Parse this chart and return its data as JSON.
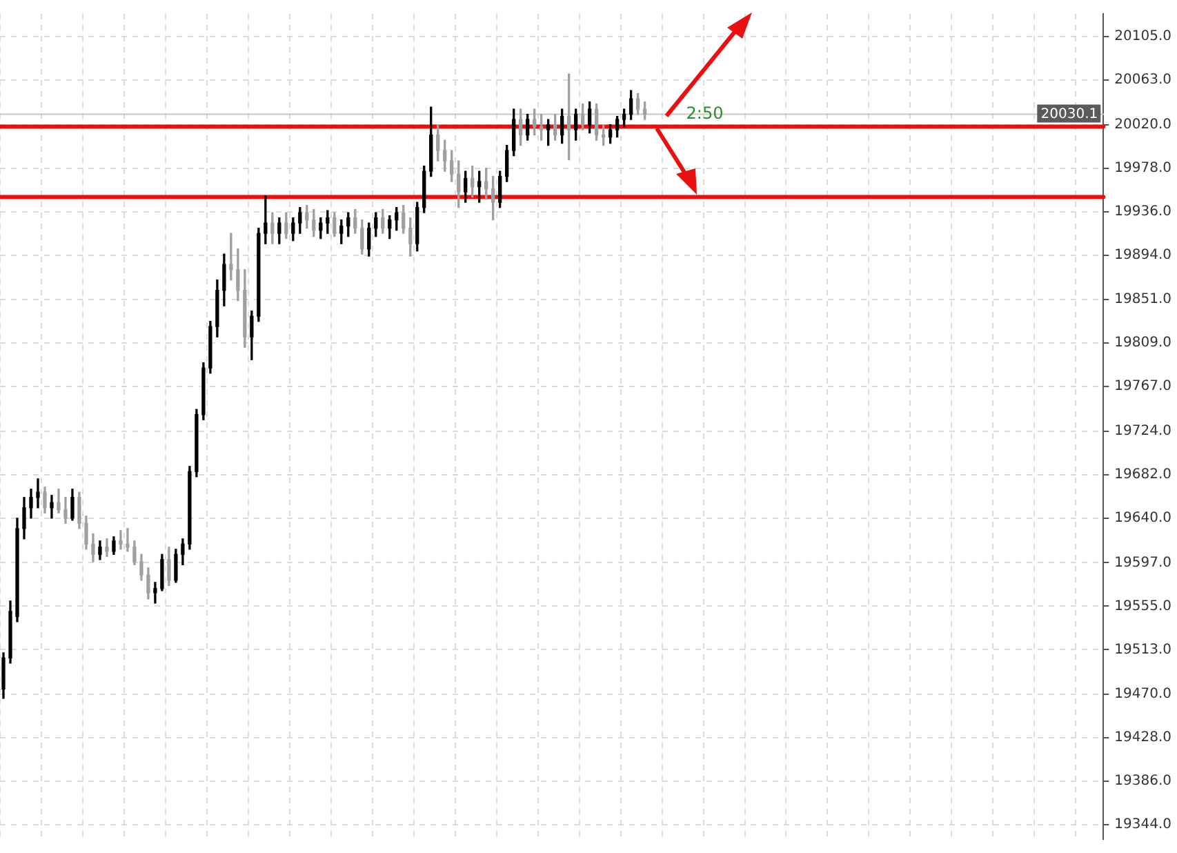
{
  "chart_data": {
    "type": "candlestick",
    "categories": [
      null,
      null,
      null,
      null,
      null,
      null,
      null,
      null,
      null,
      null,
      null,
      null,
      null,
      null,
      null,
      null,
      null,
      null,
      null,
      null,
      null,
      null,
      null,
      null,
      null,
      null,
      null,
      null,
      null,
      null,
      null,
      null,
      null,
      null,
      null,
      null,
      null,
      null,
      null,
      null,
      null,
      null,
      null,
      null,
      null,
      null,
      null,
      null,
      null,
      null,
      null,
      null,
      null,
      null,
      null,
      null,
      null,
      null,
      null,
      null,
      null,
      null,
      null,
      null,
      null,
      null,
      null,
      null,
      null,
      null,
      null,
      null,
      null,
      null,
      null,
      null,
      null,
      null,
      null,
      null,
      null,
      null,
      null,
      null,
      null,
      null,
      null,
      null,
      null,
      null,
      null,
      null,
      null,
      null,
      null,
      null,
      null,
      null,
      null,
      null,
      null,
      null,
      null,
      null,
      null,
      null,
      null,
      null,
      null,
      null,
      null,
      null,
      null,
      null,
      null,
      null,
      null,
      null,
      null,
      null,
      null,
      null,
      null,
      null,
      null,
      null,
      null,
      null,
      null,
      null,
      null,
      null,
      null,
      null,
      null,
      null,
      null,
      null,
      null,
      null,
      null,
      null,
      null,
      null,
      null,
      null,
      null,
      null,
      null,
      null,
      null,
      null,
      null,
      null,
      null,
      null,
      null,
      null,
      null,
      null
    ],
    "ohlc": [
      [
        19475,
        19510,
        19466,
        19505
      ],
      [
        19505,
        19560,
        19500,
        19550
      ],
      [
        19545,
        19640,
        19540,
        19630
      ],
      [
        19630,
        19660,
        19620,
        19650
      ],
      [
        19650,
        19668,
        19640,
        19660
      ],
      [
        19660,
        19678,
        19650,
        19665
      ],
      [
        19665,
        19670,
        19645,
        19650
      ],
      [
        19650,
        19662,
        19640,
        19655
      ],
      [
        19655,
        19668,
        19645,
        19648
      ],
      [
        19648,
        19660,
        19635,
        19640
      ],
      [
        19640,
        19668,
        19638,
        19660
      ],
      [
        19660,
        19665,
        19630,
        19635
      ],
      [
        19635,
        19642,
        19610,
        19615
      ],
      [
        19615,
        19625,
        19598,
        19605
      ],
      [
        19605,
        19618,
        19600,
        19612
      ],
      [
        19612,
        19620,
        19603,
        19608
      ],
      [
        19608,
        19622,
        19605,
        19618
      ],
      [
        19618,
        19628,
        19610,
        19615
      ],
      [
        19615,
        19630,
        19608,
        19612
      ],
      [
        19612,
        19618,
        19595,
        19598
      ],
      [
        19598,
        19605,
        19580,
        19585
      ],
      [
        19585,
        19592,
        19562,
        19568
      ],
      [
        19568,
        19578,
        19558,
        19572
      ],
      [
        19572,
        19605,
        19570,
        19600
      ],
      [
        19600,
        19612,
        19575,
        19580
      ],
      [
        19580,
        19610,
        19578,
        19605
      ],
      [
        19605,
        19620,
        19595,
        19615
      ],
      [
        19615,
        19690,
        19610,
        19685
      ],
      [
        19685,
        19745,
        19680,
        19740
      ],
      [
        19740,
        19790,
        19735,
        19785
      ],
      [
        19785,
        19830,
        19780,
        19825
      ],
      [
        19825,
        19870,
        19815,
        19860
      ],
      [
        19860,
        19895,
        19845,
        19885
      ],
      [
        19885,
        19915,
        19870,
        19880
      ],
      [
        19880,
        19900,
        19850,
        19860
      ],
      [
        19860,
        19880,
        19805,
        19815
      ],
      [
        19815,
        19840,
        19793,
        19835
      ],
      [
        19835,
        19920,
        19830,
        19915
      ],
      [
        19915,
        19951,
        19905,
        19925
      ],
      [
        19925,
        19935,
        19905,
        19915
      ],
      [
        19915,
        19930,
        19905,
        19925
      ],
      [
        19925,
        19935,
        19910,
        19915
      ],
      [
        19915,
        19930,
        19908,
        19925
      ],
      [
        19925,
        19940,
        19915,
        19935
      ],
      [
        19935,
        19942,
        19920,
        19928
      ],
      [
        19928,
        19938,
        19912,
        19918
      ],
      [
        19918,
        19930,
        19910,
        19925
      ],
      [
        19925,
        19937,
        19915,
        19930
      ],
      [
        19930,
        19935,
        19912,
        19915
      ],
      [
        19915,
        19928,
        19905,
        19922
      ],
      [
        19922,
        19935,
        19912,
        19930
      ],
      [
        19930,
        19938,
        19915,
        19920
      ],
      [
        19920,
        19928,
        19895,
        19900
      ],
      [
        19900,
        19925,
        19893,
        19920
      ],
      [
        19920,
        19935,
        19912,
        19930
      ],
      [
        19930,
        19938,
        19915,
        19920
      ],
      [
        19920,
        19932,
        19910,
        19928
      ],
      [
        19928,
        19940,
        19918,
        19935
      ],
      [
        19935,
        19942,
        19915,
        19920
      ],
      [
        19920,
        19930,
        19893,
        19905
      ],
      [
        19905,
        19945,
        19898,
        19940
      ],
      [
        19940,
        19980,
        19935,
        19975
      ],
      [
        19975,
        20037,
        19970,
        20010
      ],
      [
        20010,
        20020,
        19985,
        19995
      ],
      [
        19995,
        20005,
        19975,
        19985
      ],
      [
        19985,
        19995,
        19965,
        19972
      ],
      [
        19972,
        19985,
        19940,
        19955
      ],
      [
        19955,
        19975,
        19945,
        19968
      ],
      [
        19968,
        19980,
        19950,
        19960
      ],
      [
        19960,
        19975,
        19945,
        19965
      ],
      [
        19965,
        19978,
        19948,
        19958
      ],
      [
        19958,
        19970,
        19928,
        19945
      ],
      [
        19945,
        19975,
        19940,
        19970
      ],
      [
        19970,
        20000,
        19965,
        19995
      ],
      [
        19995,
        20035,
        19990,
        20025
      ],
      [
        20025,
        20035,
        20000,
        20010
      ],
      [
        20010,
        20030,
        20005,
        20025
      ],
      [
        20025,
        20035,
        20010,
        20018
      ],
      [
        20018,
        20030,
        20005,
        20015
      ],
      [
        20015,
        20025,
        20000,
        20020
      ],
      [
        20020,
        20030,
        20005,
        20010
      ],
      [
        20010,
        20035,
        20002,
        20028
      ],
      [
        20028,
        20069,
        19986,
        20015
      ],
      [
        20015,
        20035,
        20005,
        20030
      ],
      [
        20030,
        20040,
        20015,
        20020
      ],
      [
        20020,
        20042,
        20012,
        20035
      ],
      [
        20035,
        20040,
        20005,
        20010
      ],
      [
        20010,
        20020,
        20000,
        20008
      ],
      [
        20008,
        20020,
        20002,
        20015
      ],
      [
        20015,
        20028,
        20008,
        20025
      ],
      [
        20025,
        20035,
        20018,
        20030
      ],
      [
        20030,
        20053,
        20025,
        20045
      ],
      [
        20045,
        20050,
        20030,
        20035
      ],
      [
        20035,
        20042,
        20025,
        20030.1
      ],
      null,
      null,
      null,
      null,
      null,
      null,
      null,
      null,
      null,
      null,
      null,
      null,
      null,
      null,
      null,
      null,
      null,
      null,
      null,
      null,
      null,
      null,
      null,
      null,
      null,
      null,
      null,
      null,
      null,
      null,
      null,
      null,
      null,
      null,
      null,
      null,
      null,
      null,
      null,
      null,
      null,
      null,
      null,
      null,
      null,
      null,
      null,
      null,
      null,
      null,
      null,
      null,
      null,
      null,
      null,
      null,
      null,
      null,
      null,
      null,
      null,
      null,
      null,
      null,
      null,
      null
    ],
    "colors": [
      "#000000",
      "#000000",
      "#000000",
      "#000000",
      "#000000",
      "#000000",
      "#a0a0a0",
      "#000000",
      "#a0a0a0",
      "#a0a0a0",
      "#000000",
      "#a0a0a0",
      "#a0a0a0",
      "#a0a0a0",
      "#000000",
      "#a0a0a0",
      "#000000",
      "#a0a0a0",
      "#a0a0a0",
      "#a0a0a0",
      "#a0a0a0",
      "#a0a0a0",
      "#000000",
      "#000000",
      "#a0a0a0",
      "#000000",
      "#000000",
      "#000000",
      "#000000",
      "#000000",
      "#000000",
      "#000000",
      "#000000",
      "#a0a0a0",
      "#a0a0a0",
      "#a0a0a0",
      "#000000",
      "#000000",
      "#000000",
      "#a0a0a0",
      "#000000",
      "#a0a0a0",
      "#000000",
      "#000000",
      "#a0a0a0",
      "#a0a0a0",
      "#000000",
      "#000000",
      "#a0a0a0",
      "#000000",
      "#000000",
      "#a0a0a0",
      "#a0a0a0",
      "#000000",
      "#000000",
      "#a0a0a0",
      "#000000",
      "#000000",
      "#a0a0a0",
      "#a0a0a0",
      "#000000",
      "#000000",
      "#000000",
      "#a0a0a0",
      "#a0a0a0",
      "#a0a0a0",
      "#a0a0a0",
      "#000000",
      "#a0a0a0",
      "#000000",
      "#a0a0a0",
      "#a0a0a0",
      "#000000",
      "#000000",
      "#000000",
      "#a0a0a0",
      "#000000",
      "#a0a0a0",
      "#a0a0a0",
      "#000000",
      "#a0a0a0",
      "#000000",
      "#a0a0a0",
      "#000000",
      "#a0a0a0",
      "#000000",
      "#a0a0a0",
      "#a0a0a0",
      "#000000",
      "#000000",
      "#000000",
      "#000000",
      "#a0a0a0",
      "#a0a0a0",
      null,
      null,
      null,
      null,
      null,
      null,
      null,
      null,
      null,
      null,
      null,
      null,
      null,
      null,
      null,
      null,
      null,
      null,
      null,
      null,
      null,
      null,
      null,
      null,
      null,
      null,
      null,
      null,
      null,
      null,
      null,
      null,
      null,
      null,
      null,
      null,
      null,
      null,
      null,
      null,
      null,
      null,
      null,
      null,
      null,
      null,
      null,
      null,
      null,
      null,
      null,
      null,
      null,
      null,
      null,
      null,
      null,
      null,
      null,
      null,
      null,
      null,
      null,
      null,
      null,
      null
    ],
    "ylim": [
      19330,
      20127
    ],
    "yticks": [
      {
        "value": 20105,
        "label": "20105.0"
      },
      {
        "value": 20063,
        "label": "20063.0"
      },
      {
        "value": 20020,
        "label": "20020.0"
      },
      {
        "value": 19978,
        "label": "19978.0"
      },
      {
        "value": 19936,
        "label": "19936.0"
      },
      {
        "value": 19894,
        "label": "19894.0"
      },
      {
        "value": 19851,
        "label": "19851.0"
      },
      {
        "value": 19809,
        "label": "19809.0"
      },
      {
        "value": 19767,
        "label": "19767.0"
      },
      {
        "value": 19724,
        "label": "19724.0"
      },
      {
        "value": 19682,
        "label": "19682.0"
      },
      {
        "value": 19640,
        "label": "19640.0"
      },
      {
        "value": 19597,
        "label": "19597.0"
      },
      {
        "value": 19555,
        "label": "19555.0"
      },
      {
        "value": 19513,
        "label": "19513.0"
      },
      {
        "value": 19470,
        "label": "19470.0"
      },
      {
        "value": 19428,
        "label": "19428.0"
      },
      {
        "value": 19386,
        "label": "19386.0"
      },
      {
        "value": 19344,
        "label": "19344.0"
      }
    ],
    "tick_labels": "y",
    "grid": true,
    "ref_lines": [
      {
        "axis": "y",
        "value": 20030.1,
        "label": "20030.1",
        "color": "#c8c8c8"
      },
      {
        "axis": "y",
        "value": 20018,
        "color": "#e81010"
      },
      {
        "axis": "y",
        "value": 19950,
        "color": "#e81010"
      }
    ],
    "annotations": [
      "2:50"
    ]
  }
}
